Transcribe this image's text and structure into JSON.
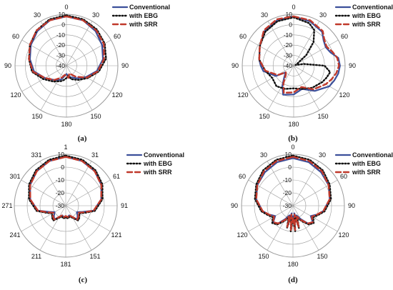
{
  "chart_data": [
    {
      "type": "polar-line",
      "caption": "(a)",
      "angle_labels": [
        "0",
        "30",
        "60",
        "90",
        "120",
        "150",
        "180",
        "150",
        "120",
        "90",
        "60",
        "30"
      ],
      "r_labels": [
        "10",
        "0",
        "-10",
        "-20",
        "-30",
        "-40"
      ],
      "rlim": [
        -40,
        10
      ],
      "legend": [
        "Conventional",
        "with EBG",
        "with SRR"
      ],
      "legend_placement": "top-right",
      "series": [
        {
          "name": "Conventional",
          "color": "#3b4f9a",
          "style": "solid",
          "theta": [
            0,
            20,
            40,
            60,
            80,
            100,
            120,
            140,
            160,
            170,
            180,
            190,
            200,
            210,
            220,
            240,
            260,
            280,
            300,
            320,
            340
          ],
          "r": [
            8,
            7,
            4,
            0,
            -4,
            -10,
            -18,
            -24,
            -28,
            -30,
            -32,
            -30,
            -26,
            -24,
            -22,
            -16,
            -8,
            -4,
            0,
            4,
            7
          ]
        },
        {
          "name": "with EBG",
          "color": "#111111",
          "style": "dotted",
          "theta": [
            0,
            20,
            40,
            60,
            80,
            100,
            120,
            140,
            160,
            170,
            180,
            190,
            200,
            220,
            240,
            260,
            280,
            300,
            320,
            340
          ],
          "r": [
            9,
            8,
            6,
            3,
            -1,
            -8,
            -16,
            -22,
            -26,
            -30,
            -28,
            -26,
            -24,
            -20,
            -14,
            -6,
            -3,
            1,
            5,
            8
          ]
        },
        {
          "name": "with SRR",
          "color": "#c0392b",
          "style": "dashed",
          "theta": [
            0,
            20,
            40,
            60,
            80,
            100,
            120,
            140,
            150,
            160,
            170,
            180,
            190,
            200,
            220,
            240,
            260,
            280,
            300,
            320,
            340
          ],
          "r": [
            8,
            7,
            5,
            2,
            -3,
            -9,
            -17,
            -26,
            -30,
            -32,
            -28,
            -30,
            -31,
            -28,
            -22,
            -16,
            -7,
            -3,
            1,
            5,
            7
          ]
        }
      ]
    },
    {
      "type": "polar-line",
      "caption": "(b)",
      "angle_labels": [
        "0",
        "30",
        "60",
        "90",
        "120",
        "150",
        "180",
        "150",
        "120",
        "90",
        "60",
        "30"
      ],
      "r_labels": [
        "10",
        "0",
        "-10",
        "-20",
        "-30",
        "-40"
      ],
      "rlim": [
        -40,
        10
      ],
      "legend": [
        "Conventional",
        "with EBG",
        "with SRR"
      ],
      "legend_placement": "top-right",
      "series": [
        {
          "name": "Conventional",
          "color": "#3b4f9a",
          "style": "solid",
          "theta": [
            0,
            20,
            40,
            50,
            60,
            70,
            80,
            90,
            100,
            110,
            120,
            140,
            160,
            180,
            200,
            210,
            220,
            230,
            240,
            260,
            270,
            280,
            300,
            320,
            340
          ],
          "r": [
            8,
            6,
            3,
            -2,
            -4,
            -2,
            4,
            5,
            4,
            2,
            0,
            -8,
            -16,
            -12,
            -10,
            -18,
            -26,
            -30,
            -20,
            -10,
            -8,
            -6,
            -2,
            4,
            7
          ]
        },
        {
          "name": "with EBG",
          "color": "#111111",
          "style": "dotted",
          "theta": [
            0,
            20,
            30,
            40,
            50,
            60,
            70,
            80,
            90,
            100,
            110,
            120,
            140,
            160,
            180,
            200,
            220,
            240,
            260,
            280,
            300,
            320,
            340
          ],
          "r": [
            7,
            4,
            0,
            -10,
            -24,
            -36,
            -38,
            -30,
            -10,
            -4,
            -6,
            -8,
            -12,
            -16,
            -18,
            -16,
            -14,
            -16,
            -12,
            -6,
            -2,
            3,
            6
          ]
        },
        {
          "name": "with SRR",
          "color": "#c0392b",
          "style": "dashed",
          "theta": [
            0,
            20,
            40,
            50,
            60,
            70,
            80,
            90,
            100,
            110,
            120,
            140,
            160,
            180,
            200,
            210,
            220,
            230,
            240,
            260,
            280,
            300,
            320,
            340
          ],
          "r": [
            8,
            7,
            4,
            -1,
            -3,
            0,
            3,
            4,
            2,
            -1,
            -4,
            -10,
            -18,
            -14,
            -12,
            -20,
            -28,
            -30,
            -22,
            -12,
            -6,
            -2,
            5,
            8
          ]
        }
      ]
    },
    {
      "type": "polar-line",
      "caption": "(c)",
      "angle_labels": [
        "1",
        "31",
        "61",
        "91",
        "121",
        "151",
        "181",
        "211",
        "241",
        "271",
        "301",
        "331"
      ],
      "r_labels": [
        "10",
        "0",
        "-10",
        "-20",
        "-30"
      ],
      "rlim": [
        -30,
        10
      ],
      "legend": [
        "Conventional",
        "with EBG",
        "with SRR"
      ],
      "legend_placement": "top-right",
      "series": [
        {
          "name": "Conventional",
          "color": "#3b4f9a",
          "style": "solid",
          "theta": [
            0,
            20,
            40,
            60,
            80,
            100,
            110,
            120,
            130,
            140,
            150,
            160,
            170,
            180,
            190,
            200,
            210,
            220,
            230,
            240,
            250,
            260,
            280,
            300,
            320,
            340
          ],
          "r": [
            8,
            7,
            5,
            2,
            -2,
            -8,
            -16,
            -20,
            -18,
            -16,
            -20,
            -22,
            -21,
            -22,
            -21,
            -22,
            -20,
            -16,
            -18,
            -20,
            -16,
            -8,
            -2,
            2,
            5,
            7
          ]
        },
        {
          "name": "with EBG",
          "color": "#111111",
          "style": "dotted",
          "theta": [
            0,
            20,
            40,
            60,
            80,
            100,
            110,
            120,
            130,
            140,
            150,
            160,
            170,
            180,
            190,
            200,
            210,
            220,
            230,
            240,
            250,
            260,
            280,
            300,
            320,
            340
          ],
          "r": [
            9,
            8,
            6,
            3,
            -1,
            -7,
            -14,
            -18,
            -16,
            -15,
            -19,
            -21,
            -20,
            -21,
            -20,
            -21,
            -19,
            -15,
            -16,
            -18,
            -14,
            -7,
            -1,
            3,
            6,
            8
          ]
        },
        {
          "name": "with SRR",
          "color": "#c0392b",
          "style": "dashed",
          "theta": [
            0,
            20,
            40,
            60,
            80,
            100,
            110,
            120,
            130,
            140,
            150,
            160,
            170,
            180,
            190,
            200,
            210,
            220,
            230,
            240,
            250,
            260,
            280,
            300,
            320,
            340
          ],
          "r": [
            8,
            7,
            5,
            2,
            -2,
            -8,
            -15,
            -19,
            -17,
            -16,
            -20,
            -22,
            -21,
            -22,
            -21,
            -22,
            -20,
            -16,
            -17,
            -19,
            -15,
            -8,
            -2,
            2,
            5,
            7
          ]
        }
      ]
    },
    {
      "type": "polar-line",
      "caption": "(d)",
      "angle_labels": [
        "0",
        "30",
        "60",
        "90",
        "120",
        "150",
        "180",
        "150",
        "120",
        "90",
        "60",
        "30"
      ],
      "r_labels": [
        "10",
        "0",
        "-10",
        "-20",
        "-30"
      ],
      "rlim": [
        -30,
        10
      ],
      "legend": [
        "Conventional",
        "with EBG",
        "with SRR"
      ],
      "legend_placement": "top-right",
      "series": [
        {
          "name": "Conventional",
          "color": "#3b4f9a",
          "style": "solid",
          "theta": [
            0,
            20,
            40,
            60,
            80,
            100,
            110,
            120,
            130,
            140,
            150,
            160,
            165,
            170,
            175,
            180,
            185,
            190,
            195,
            200,
            210,
            220,
            230,
            240,
            250,
            260,
            280,
            300,
            320,
            340
          ],
          "r": [
            7,
            6,
            4,
            2,
            -1,
            -6,
            -10,
            -14,
            -10,
            -12,
            -18,
            -22,
            -14,
            -24,
            -12,
            -22,
            -12,
            -24,
            -14,
            -22,
            -18,
            -12,
            -10,
            -14,
            -10,
            -6,
            -1,
            2,
            4,
            6
          ]
        },
        {
          "name": "with EBG",
          "color": "#111111",
          "style": "dotted",
          "theta": [
            0,
            20,
            40,
            60,
            80,
            100,
            110,
            120,
            130,
            140,
            150,
            160,
            165,
            170,
            175,
            180,
            185,
            190,
            195,
            200,
            210,
            220,
            230,
            240,
            250,
            260,
            280,
            300,
            320,
            340
          ],
          "r": [
            9,
            8,
            6,
            3,
            0,
            -5,
            -9,
            -12,
            -9,
            -11,
            -16,
            -20,
            -12,
            -22,
            -10,
            -20,
            -10,
            -22,
            -12,
            -20,
            -16,
            -11,
            -9,
            -12,
            -9,
            -5,
            0,
            3,
            6,
            8
          ]
        },
        {
          "name": "with SRR",
          "color": "#c0392b",
          "style": "dashed",
          "theta": [
            0,
            20,
            40,
            60,
            80,
            100,
            110,
            120,
            130,
            140,
            150,
            160,
            165,
            170,
            175,
            180,
            185,
            190,
            195,
            200,
            210,
            220,
            230,
            240,
            250,
            260,
            280,
            300,
            320,
            340
          ],
          "r": [
            8,
            7,
            5,
            2,
            -1,
            -6,
            -10,
            -13,
            -10,
            -12,
            -17,
            -21,
            -13,
            -23,
            -11,
            -21,
            -11,
            -23,
            -13,
            -21,
            -17,
            -12,
            -10,
            -13,
            -10,
            -6,
            -1,
            2,
            5,
            7
          ]
        }
      ]
    }
  ]
}
